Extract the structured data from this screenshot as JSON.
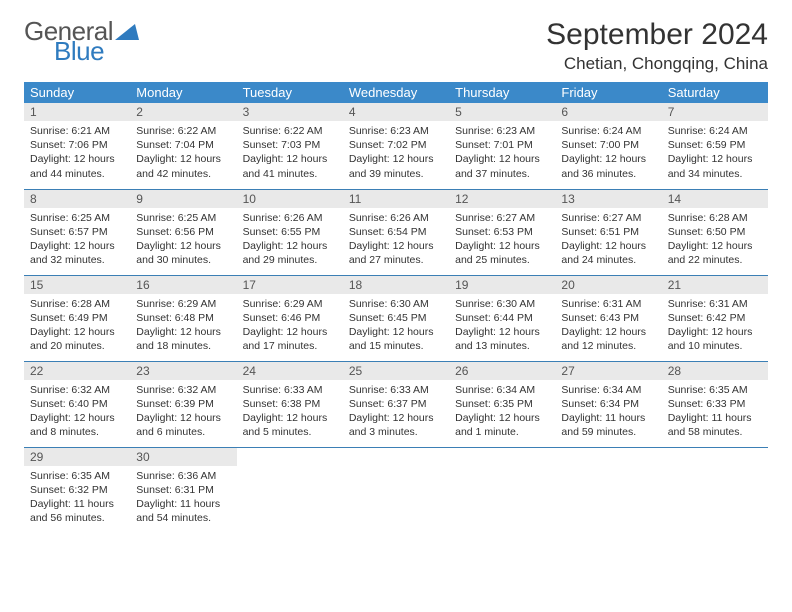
{
  "logo": {
    "general": "General",
    "blue": "Blue"
  },
  "title": "September 2024",
  "location": "Chetian, Chongqing, China",
  "colors": {
    "header_bg": "#3b89c9",
    "header_text": "#ffffff",
    "daynum_bg": "#e9e9e9",
    "row_divider": "#3b7fb5",
    "logo_blue": "#2f7bbf",
    "logo_gray": "#555555"
  },
  "weekdays": [
    "Sunday",
    "Monday",
    "Tuesday",
    "Wednesday",
    "Thursday",
    "Friday",
    "Saturday"
  ],
  "days": [
    {
      "n": 1,
      "sr": "6:21 AM",
      "ss": "7:06 PM",
      "dl": "12 hours and 44 minutes."
    },
    {
      "n": 2,
      "sr": "6:22 AM",
      "ss": "7:04 PM",
      "dl": "12 hours and 42 minutes."
    },
    {
      "n": 3,
      "sr": "6:22 AM",
      "ss": "7:03 PM",
      "dl": "12 hours and 41 minutes."
    },
    {
      "n": 4,
      "sr": "6:23 AM",
      "ss": "7:02 PM",
      "dl": "12 hours and 39 minutes."
    },
    {
      "n": 5,
      "sr": "6:23 AM",
      "ss": "7:01 PM",
      "dl": "12 hours and 37 minutes."
    },
    {
      "n": 6,
      "sr": "6:24 AM",
      "ss": "7:00 PM",
      "dl": "12 hours and 36 minutes."
    },
    {
      "n": 7,
      "sr": "6:24 AM",
      "ss": "6:59 PM",
      "dl": "12 hours and 34 minutes."
    },
    {
      "n": 8,
      "sr": "6:25 AM",
      "ss": "6:57 PM",
      "dl": "12 hours and 32 minutes."
    },
    {
      "n": 9,
      "sr": "6:25 AM",
      "ss": "6:56 PM",
      "dl": "12 hours and 30 minutes."
    },
    {
      "n": 10,
      "sr": "6:26 AM",
      "ss": "6:55 PM",
      "dl": "12 hours and 29 minutes."
    },
    {
      "n": 11,
      "sr": "6:26 AM",
      "ss": "6:54 PM",
      "dl": "12 hours and 27 minutes."
    },
    {
      "n": 12,
      "sr": "6:27 AM",
      "ss": "6:53 PM",
      "dl": "12 hours and 25 minutes."
    },
    {
      "n": 13,
      "sr": "6:27 AM",
      "ss": "6:51 PM",
      "dl": "12 hours and 24 minutes."
    },
    {
      "n": 14,
      "sr": "6:28 AM",
      "ss": "6:50 PM",
      "dl": "12 hours and 22 minutes."
    },
    {
      "n": 15,
      "sr": "6:28 AM",
      "ss": "6:49 PM",
      "dl": "12 hours and 20 minutes."
    },
    {
      "n": 16,
      "sr": "6:29 AM",
      "ss": "6:48 PM",
      "dl": "12 hours and 18 minutes."
    },
    {
      "n": 17,
      "sr": "6:29 AM",
      "ss": "6:46 PM",
      "dl": "12 hours and 17 minutes."
    },
    {
      "n": 18,
      "sr": "6:30 AM",
      "ss": "6:45 PM",
      "dl": "12 hours and 15 minutes."
    },
    {
      "n": 19,
      "sr": "6:30 AM",
      "ss": "6:44 PM",
      "dl": "12 hours and 13 minutes."
    },
    {
      "n": 20,
      "sr": "6:31 AM",
      "ss": "6:43 PM",
      "dl": "12 hours and 12 minutes."
    },
    {
      "n": 21,
      "sr": "6:31 AM",
      "ss": "6:42 PM",
      "dl": "12 hours and 10 minutes."
    },
    {
      "n": 22,
      "sr": "6:32 AM",
      "ss": "6:40 PM",
      "dl": "12 hours and 8 minutes."
    },
    {
      "n": 23,
      "sr": "6:32 AM",
      "ss": "6:39 PM",
      "dl": "12 hours and 6 minutes."
    },
    {
      "n": 24,
      "sr": "6:33 AM",
      "ss": "6:38 PM",
      "dl": "12 hours and 5 minutes."
    },
    {
      "n": 25,
      "sr": "6:33 AM",
      "ss": "6:37 PM",
      "dl": "12 hours and 3 minutes."
    },
    {
      "n": 26,
      "sr": "6:34 AM",
      "ss": "6:35 PM",
      "dl": "12 hours and 1 minute."
    },
    {
      "n": 27,
      "sr": "6:34 AM",
      "ss": "6:34 PM",
      "dl": "11 hours and 59 minutes."
    },
    {
      "n": 28,
      "sr": "6:35 AM",
      "ss": "6:33 PM",
      "dl": "11 hours and 58 minutes."
    },
    {
      "n": 29,
      "sr": "6:35 AM",
      "ss": "6:32 PM",
      "dl": "11 hours and 56 minutes."
    },
    {
      "n": 30,
      "sr": "6:36 AM",
      "ss": "6:31 PM",
      "dl": "11 hours and 54 minutes."
    }
  ],
  "labels": {
    "sunrise": "Sunrise:",
    "sunset": "Sunset:",
    "daylight": "Daylight:"
  }
}
